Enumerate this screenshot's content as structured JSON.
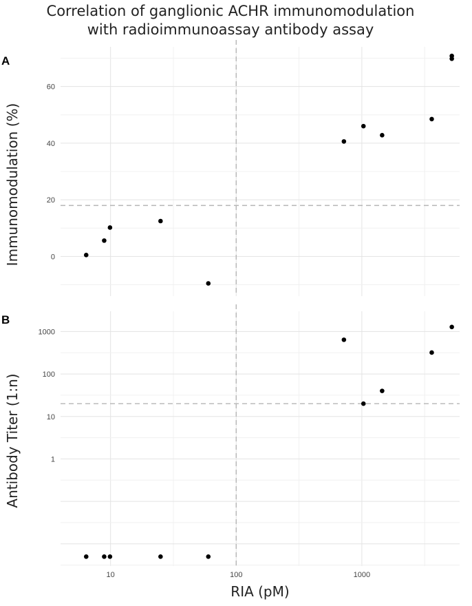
{
  "title_line1": "Correlation of ganglionic ACHR immunomodulation",
  "title_line2": "with radioimmunoassay antibody assay",
  "xlabel": "RIA (pM)",
  "x_ticks": [
    {
      "value": 10,
      "label": "10"
    },
    {
      "value": 100,
      "label": "100"
    },
    {
      "value": 1000,
      "label": "1000"
    }
  ],
  "chart_data": [
    {
      "type": "scatter",
      "panel": "A",
      "title": "Correlation of ganglionic ACHR immunomodulation with radioimmunoassay antibody assay",
      "xlabel": "RIA (pM)",
      "ylabel": "Immunomodulation (%)",
      "x_scale": "log",
      "xlim": [
        4,
        6000
      ],
      "ylim": [
        -14,
        74
      ],
      "y_ticks": [
        {
          "value": 0,
          "label": "0"
        },
        {
          "value": 20,
          "label": "20"
        },
        {
          "value": 40,
          "label": "40"
        },
        {
          "value": 60,
          "label": "60"
        }
      ],
      "reference_lines": {
        "x": 100,
        "y": 18
      },
      "grid": true,
      "points": [
        {
          "x": 6.4,
          "y": 0.5
        },
        {
          "x": 8.9,
          "y": 5.6
        },
        {
          "x": 9.9,
          "y": 10.2
        },
        {
          "x": 25,
          "y": 12.5
        },
        {
          "x": 60,
          "y": -9.5
        },
        {
          "x": 720,
          "y": 40.6
        },
        {
          "x": 1030,
          "y": 46
        },
        {
          "x": 1450,
          "y": 42.8
        },
        {
          "x": 3600,
          "y": 48.5
        },
        {
          "x": 5200,
          "y": 69.8
        },
        {
          "x": 5200,
          "y": 70.8
        }
      ]
    },
    {
      "type": "scatter",
      "panel": "B",
      "xlabel": "RIA (pM)",
      "ylabel": "Antibody Titer (1:n)",
      "x_scale": "log",
      "y_scale": "log",
      "xlim": [
        4,
        6000
      ],
      "ylim": [
        0.003,
        3000
      ],
      "y_ticks": [
        {
          "value": 1,
          "label": "1"
        },
        {
          "value": 10,
          "label": "10"
        },
        {
          "value": 100,
          "label": "100"
        },
        {
          "value": 1000,
          "label": "1000"
        }
      ],
      "reference_lines": {
        "x": 100,
        "y": 20
      },
      "grid": true,
      "points": [
        {
          "x": 6.4,
          "y": 0.005
        },
        {
          "x": 8.9,
          "y": 0.005
        },
        {
          "x": 9.9,
          "y": 0.005
        },
        {
          "x": 25,
          "y": 0.005
        },
        {
          "x": 60,
          "y": 0.005
        },
        {
          "x": 720,
          "y": 640
        },
        {
          "x": 1030,
          "y": 20
        },
        {
          "x": 1450,
          "y": 40
        },
        {
          "x": 3600,
          "y": 320
        },
        {
          "x": 5200,
          "y": 1280
        }
      ]
    }
  ]
}
